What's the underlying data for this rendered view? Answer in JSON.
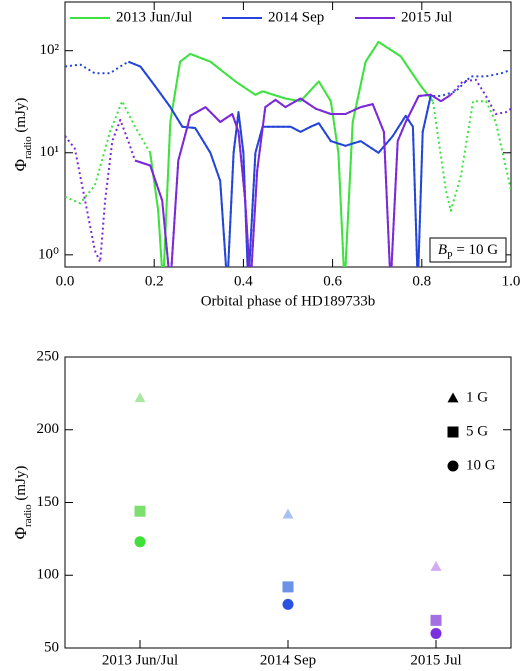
{
  "chart_data": [
    {
      "type": "line",
      "legend_labels_position": "top",
      "xlabel": "Orbital phase of HD189733b",
      "ylabel": [
        "Φ",
        "radio",
        " (mJy)"
      ],
      "annotation": [
        "B",
        "P",
        " = 10 G"
      ],
      "log_y": true,
      "xlim": [
        0,
        1
      ],
      "xticks": [
        {
          "value": 0,
          "label": "0.0"
        },
        0.2,
        0.4,
        0.6,
        0.8,
        {
          "value": 1,
          "label": "1.0"
        }
      ],
      "ylim": [
        0.76,
        300
      ],
      "yticks": [
        {
          "value": 1,
          "label": "10⁰"
        },
        {
          "value": 10,
          "label": "10¹"
        },
        {
          "value": 100,
          "label": "10²"
        }
      ],
      "series": [
        {
          "name": "2013 Jun/Jul",
          "color": "#3ee23e",
          "solid_xrange": [
            0.17,
            0.83
          ],
          "x": [
            0,
            0.034,
            0.067,
            0.101,
            0.128,
            0.157,
            0.191,
            0.209,
            0.22,
            0.236,
            0.258,
            0.281,
            0.326,
            0.382,
            0.427,
            0.443,
            0.494,
            0.528,
            0.569,
            0.596,
            0.613,
            0.627,
            0.645,
            0.674,
            0.703,
            0.753,
            0.798,
            0.825,
            0.854,
            0.865,
            0.888,
            0.915,
            0.944,
            0.966,
            1.0
          ],
          "values": [
            3.7,
            3.2,
            4.8,
            16,
            32,
            18,
            10,
            2.7,
            0.5,
            20,
            78,
            93,
            78,
            50,
            37,
            40,
            34,
            32,
            50,
            32,
            10,
            0.5,
            20,
            78,
            122,
            88,
            45,
            32,
            4.3,
            2.7,
            6,
            32,
            32,
            20,
            4.3
          ]
        },
        {
          "name": "2014 Sep",
          "color": "#2446d8",
          "solid_xrange": [
            0.14,
            0.83
          ],
          "x": [
            0,
            0.034,
            0.067,
            0.101,
            0.124,
            0.142,
            0.169,
            0.202,
            0.236,
            0.263,
            0.292,
            0.326,
            0.348,
            0.364,
            0.378,
            0.389,
            0.4,
            0.411,
            0.427,
            0.443,
            0.472,
            0.506,
            0.528,
            0.551,
            0.569,
            0.596,
            0.629,
            0.663,
            0.703,
            0.735,
            0.764,
            0.78,
            0.791,
            0.802,
            0.82,
            0.843,
            0.876,
            0.91,
            0.944,
            0.978,
            1.0
          ],
          "values": [
            70,
            73,
            60,
            60,
            70,
            78,
            70,
            45,
            28,
            18,
            17.5,
            10,
            5.3,
            0.5,
            10,
            25,
            10,
            0.5,
            10,
            18,
            18,
            18,
            16,
            18,
            19.5,
            13,
            11.7,
            13,
            10,
            14.6,
            23,
            18,
            0.5,
            16,
            36,
            36,
            40,
            56,
            56,
            60,
            65
          ]
        },
        {
          "name": "2015 Jul",
          "color": "#7a28d8",
          "solid_xrange": [
            0.15,
            0.87
          ],
          "x": [
            0,
            0.022,
            0.045,
            0.067,
            0.079,
            0.09,
            0.106,
            0.124,
            0.142,
            0.157,
            0.191,
            0.218,
            0.236,
            0.254,
            0.281,
            0.315,
            0.348,
            0.375,
            0.389,
            0.404,
            0.416,
            0.431,
            0.449,
            0.472,
            0.494,
            0.528,
            0.562,
            0.596,
            0.629,
            0.663,
            0.69,
            0.715,
            0.73,
            0.746,
            0.764,
            0.793,
            0.82,
            0.843,
            0.865,
            0.892,
            0.921,
            0.944,
            0.966,
            0.989,
            1.0
          ],
          "values": [
            14.6,
            11,
            3.4,
            1.1,
            0.85,
            3.4,
            13,
            21,
            13,
            8.4,
            7.5,
            3.4,
            0.5,
            8.4,
            23,
            28,
            20,
            24,
            16,
            3.4,
            0.5,
            6.7,
            28,
            33,
            28,
            34,
            27,
            24,
            24,
            28,
            30,
            16,
            0.5,
            13,
            20,
            36,
            37,
            32,
            37,
            50,
            52,
            36,
            24,
            25,
            27
          ]
        }
      ]
    },
    {
      "type": "scatter",
      "ylabel": [
        "Φ",
        "radio",
        " (mJy)"
      ],
      "legend": "upper right",
      "categories": [
        "2013 Jun/Jul",
        "2014 Sep",
        "2015 Jul"
      ],
      "ylim": [
        50,
        250
      ],
      "yticks": [
        50,
        100,
        150,
        200,
        250
      ],
      "series": [
        {
          "name": "1 G",
          "marker": "triangle",
          "colors": [
            "#a9e8a2",
            "#a8c2f2",
            "#d6aaf2"
          ],
          "values": [
            222,
            142,
            106
          ]
        },
        {
          "name": "5 G",
          "marker": "square",
          "colors": [
            "#7ddf6e",
            "#6b92ea",
            "#a36fe2"
          ],
          "values": [
            144,
            92,
            69
          ]
        },
        {
          "name": "10 G",
          "marker": "circle",
          "colors": [
            "#3fe03a",
            "#2a52e2",
            "#7c2fe0"
          ],
          "values": [
            123,
            80,
            60
          ]
        }
      ]
    }
  ]
}
